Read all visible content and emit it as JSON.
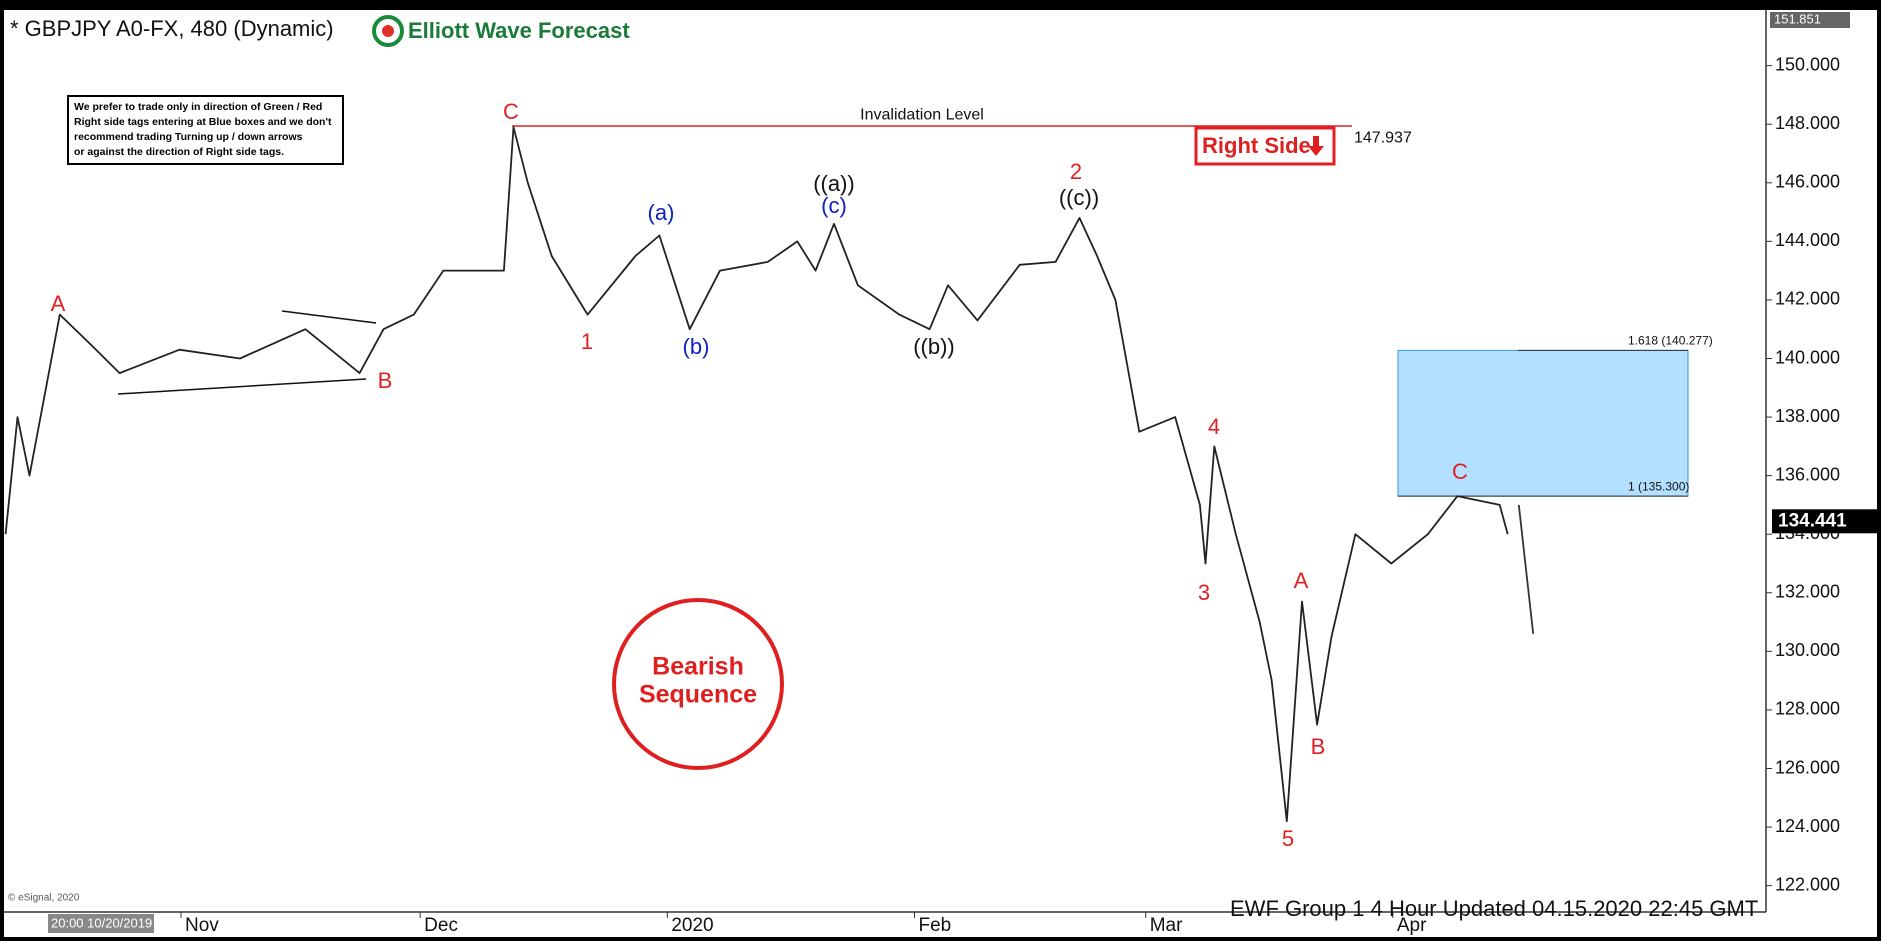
{
  "header": {
    "title": "* GBPJPY A0-FX, 480 (Dynamic)",
    "logo": "Elliott Wave Forecast"
  },
  "note": [
    "We prefer to trade only in direction of Green / Red",
    "Right side tags entering at Blue boxes and we don't",
    "recommend trading Turning up / down arrows",
    "or against the direction of Right side tags."
  ],
  "right_side": "Right Side",
  "badge": [
    "Bearish",
    "Sequence"
  ],
  "footer": "EWF Group 1 4 Hour  Updated 04.15.2020 22:45 GMT",
  "copyright": "© eSignal, 2020",
  "cursor_time": "20:00 10/20/2019",
  "chart_data": {
    "type": "line",
    "xlim": [
      -10.7,
      210.8
    ],
    "ylim": [
      121.1,
      151.9
    ],
    "xticks": [
      {
        "value": 12,
        "label": "Nov"
      },
      {
        "value": 42,
        "label": "Dec"
      },
      {
        "value": 73,
        "label": "2020"
      },
      {
        "value": 104,
        "label": "Feb"
      },
      {
        "value": 133,
        "label": "Mar"
      },
      {
        "value": 164,
        "label": "Apr"
      }
    ],
    "yticks": [
      {
        "value": 122,
        "label": "122.000"
      },
      {
        "value": 124,
        "label": "124.000"
      },
      {
        "value": 126,
        "label": "126.000"
      },
      {
        "value": 128,
        "label": "128.000"
      },
      {
        "value": 130,
        "label": "130.000"
      },
      {
        "value": 132,
        "label": "132.000"
      },
      {
        "value": 134,
        "label": "134.000"
      },
      {
        "value": 136,
        "label": "136.000"
      },
      {
        "value": 138,
        "label": "138.000"
      },
      {
        "value": 140,
        "label": "140.000"
      },
      {
        "value": 142,
        "label": "142.000"
      },
      {
        "value": 144,
        "label": "144.000"
      },
      {
        "value": 146,
        "label": "146.000"
      },
      {
        "value": 148,
        "label": "148.000"
      },
      {
        "value": 150,
        "label": "150.000"
      }
    ],
    "series": [
      {
        "color": "#222222",
        "x": [
          -10.0,
          -8.5,
          -7.0,
          -3.2,
          0.6,
          4.3,
          11.8,
          19.4,
          27.6,
          34.4,
          37.4,
          41.2,
          44.9,
          52.5,
          53.7,
          55.5,
          58.5,
          63.0,
          69.0,
          72.0,
          75.8,
          79.6,
          85.6,
          89.3,
          91.6,
          93.9,
          96.9,
          102.1,
          105.9,
          108.2,
          111.9,
          117.2,
          121.7,
          124.7,
          126.9,
          129.2,
          132.2,
          136.7,
          139.8,
          140.5,
          141.6,
          144.3,
          147.3,
          148.8,
          150.7,
          152.6,
          154.5,
          156.3,
          159.3,
          163.8,
          168.4,
          172.1,
          177.4,
          178.4
        ],
        "values": [
          134.0,
          138.0,
          136.0,
          141.5,
          140.5,
          139.5,
          140.3,
          140.0,
          141.0,
          139.5,
          141.0,
          141.5,
          143.0,
          143.0,
          147.9,
          146.0,
          143.5,
          141.5,
          143.5,
          144.2,
          141.0,
          143.0,
          143.3,
          144.0,
          143.0,
          144.6,
          142.5,
          141.5,
          141.0,
          142.5,
          141.3,
          143.2,
          143.3,
          144.8,
          143.5,
          142.0,
          137.5,
          138.0,
          135.0,
          133.0,
          137.0,
          134.0,
          131.0,
          129.0,
          124.2,
          131.7,
          127.5,
          130.5,
          134.0,
          133.0,
          134.0,
          135.3,
          135.0,
          134.0
        ]
      },
      {
        "color": "#333333",
        "x": [
          179.8,
          181.6
        ],
        "values": [
          135.0,
          130.6
        ]
      }
    ],
    "levels": [
      {
        "label": "Invalidation Level",
        "value": 147.937,
        "color": "#e02020"
      }
    ],
    "zone": {
      "top": 140.277,
      "bottom": 135.3,
      "labels": [
        "1.618 (140.277)",
        "1 (135.300)"
      ],
      "color": "#b3e0ff"
    },
    "last_price": 134.441,
    "axis_high": 151.851,
    "annotations": [
      {
        "text": "A",
        "color": "#e02020"
      },
      {
        "text": "B",
        "color": "#e02020"
      },
      {
        "text": "C",
        "color": "#e02020"
      },
      {
        "text": "1",
        "color": "#e02020"
      },
      {
        "text": "(a)",
        "color": "#1020c0"
      },
      {
        "text": "(b)",
        "color": "#1020c0"
      },
      {
        "text": "((a))",
        "color": "#111111"
      },
      {
        "text": "(c)",
        "color": "#1020c0"
      },
      {
        "text": "((b))",
        "color": "#111111"
      },
      {
        "text": "2",
        "color": "#e02020"
      },
      {
        "text": "((c))",
        "color": "#111111"
      },
      {
        "text": "4",
        "color": "#e02020"
      },
      {
        "text": "3",
        "color": "#e02020"
      },
      {
        "text": "A",
        "color": "#e02020"
      },
      {
        "text": "B",
        "color": "#e02020"
      },
      {
        "text": "5",
        "color": "#e02020"
      },
      {
        "text": "C",
        "color": "#e02020"
      }
    ]
  }
}
